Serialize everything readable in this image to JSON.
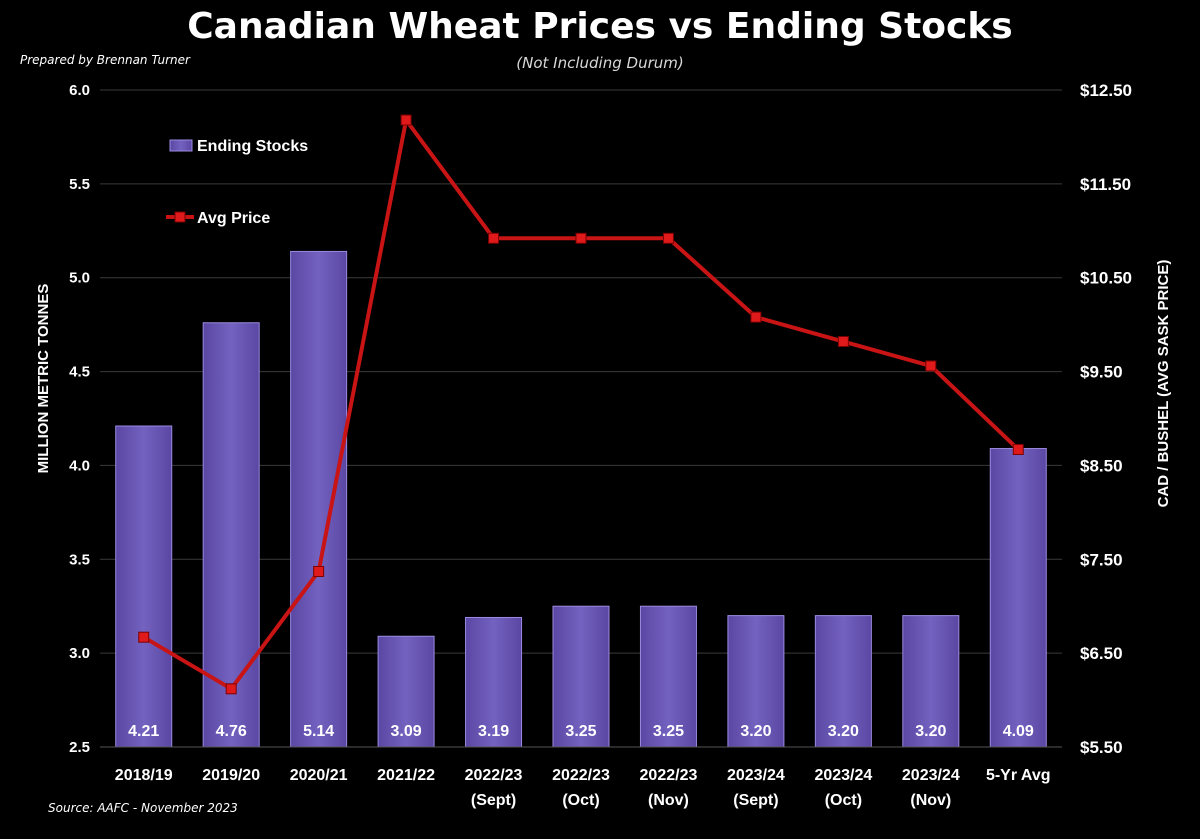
{
  "header": {
    "title": "Canadian Wheat Prices vs Ending Stocks",
    "subtitle": "(Not Including Durum)",
    "prepared_by": "Prepared by Brennan Turner",
    "source": "Source: AAFC - November 2023"
  },
  "chart_data": {
    "type": "bar",
    "categories": [
      [
        "2018/19"
      ],
      [
        "2019/20"
      ],
      [
        "2020/21"
      ],
      [
        "2021/22"
      ],
      [
        "2022/23",
        "(Sept)"
      ],
      [
        "2022/23",
        "(Oct)"
      ],
      [
        "2022/23",
        "(Nov)"
      ],
      [
        "2023/24",
        "(Sept)"
      ],
      [
        "2023/24",
        "(Oct)"
      ],
      [
        "2023/24",
        "(Nov)"
      ],
      [
        "5-Yr Avg"
      ]
    ],
    "series": [
      {
        "name": "Ending Stocks",
        "type": "bar",
        "axis": "left",
        "color": "#6a55b4",
        "values": [
          4.21,
          4.76,
          5.14,
          3.09,
          3.19,
          3.25,
          3.25,
          3.2,
          3.2,
          3.2,
          4.09
        ],
        "labels": [
          "4.21",
          "4.76",
          "5.14",
          "3.09",
          "3.19",
          "3.25",
          "3.25",
          "3.20",
          "3.20",
          "3.20",
          "4.09"
        ]
      },
      {
        "name": "Avg Price",
        "type": "line",
        "axis": "right",
        "color": "#cc1111",
        "values": [
          6.67,
          6.12,
          7.37,
          12.18,
          10.92,
          10.92,
          10.92,
          10.08,
          9.82,
          9.56,
          8.67
        ]
      }
    ],
    "ylabel": "MILLION METRIC TONNES",
    "y2label": "CAD / BUSHEL (AVG SASK PRICE)",
    "ylim": [
      2.5,
      6.0
    ],
    "y2lim": [
      5.5,
      12.5
    ],
    "yticks": [
      "2.5",
      "3.0",
      "3.5",
      "4.0",
      "4.5",
      "5.0",
      "5.5",
      "6.0"
    ],
    "y2ticks": [
      "$5.50",
      "$6.50",
      "$7.50",
      "$8.50",
      "$9.50",
      "$10.50",
      "$11.50",
      "$12.50"
    ],
    "grid": true,
    "legend_position": "top-left"
  }
}
